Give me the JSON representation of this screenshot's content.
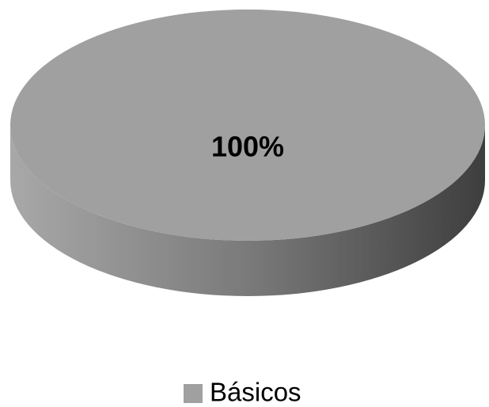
{
  "chart_data": {
    "type": "pie",
    "categories": [
      "Básicos"
    ],
    "values": [
      100
    ],
    "value_labels": [
      "100%"
    ],
    "colors": [
      "#a0a0a0"
    ],
    "legend": "bottom"
  }
}
